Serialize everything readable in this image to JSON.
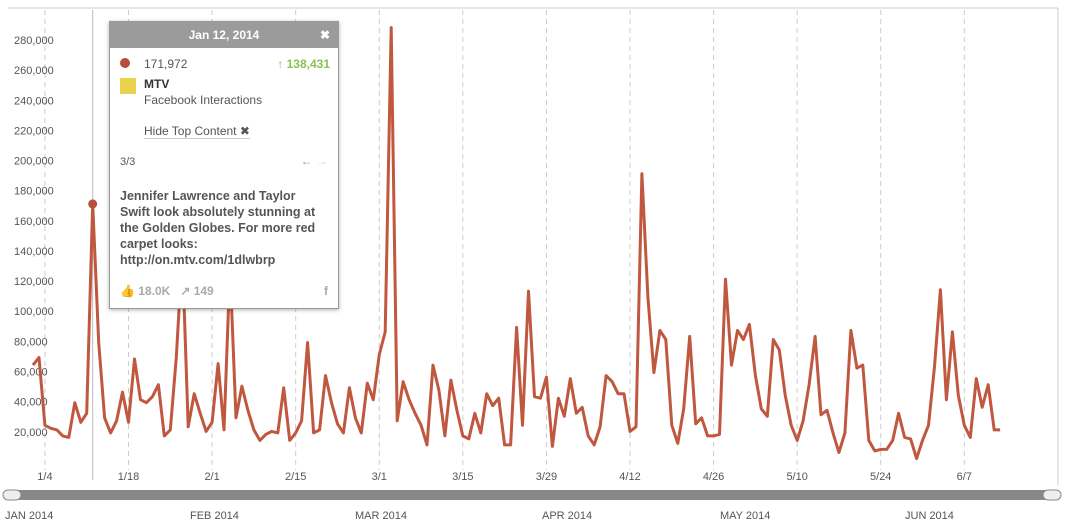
{
  "chart_data": {
    "type": "line",
    "categories": [
      null,
      null,
      "1/4",
      null,
      null,
      null,
      null,
      null,
      null,
      null,
      null,
      null,
      null,
      null,
      null,
      null,
      "1/18",
      null,
      null,
      null,
      null,
      null,
      null,
      null,
      null,
      null,
      null,
      null,
      null,
      null,
      "2/1",
      null,
      null,
      null,
      null,
      null,
      null,
      null,
      null,
      null,
      null,
      null,
      null,
      null,
      "2/15",
      null,
      null,
      null,
      null,
      null,
      null,
      null,
      null,
      null,
      null,
      null,
      null,
      null,
      "3/1",
      null,
      null,
      null,
      null,
      null,
      null,
      null,
      null,
      null,
      null,
      null,
      null,
      null,
      "3/15",
      null,
      null,
      null,
      null,
      null,
      null,
      null,
      null,
      null,
      null,
      null,
      null,
      null,
      "3/29",
      null,
      null,
      null,
      null,
      null,
      null,
      null,
      null,
      null,
      null,
      null,
      null,
      null,
      "4/12",
      null,
      null,
      null,
      null,
      null,
      null,
      null,
      null,
      null,
      null,
      null,
      null,
      null,
      "4/26",
      null,
      null,
      null,
      null,
      null,
      null,
      null,
      null,
      null,
      null,
      null,
      null,
      null,
      "5/10",
      null,
      null,
      null,
      null,
      null,
      null,
      null,
      null,
      null,
      null,
      null,
      null,
      null,
      "5/24",
      null,
      null,
      null,
      null,
      null,
      null,
      null,
      null,
      null,
      null,
      null,
      null,
      null,
      "6/7",
      null,
      null,
      null,
      null,
      null,
      null
    ],
    "values": [
      65000,
      70000,
      25000,
      23000,
      22000,
      18000,
      17000,
      40000,
      27000,
      33000,
      171972,
      80000,
      30000,
      20000,
      28000,
      47000,
      27000,
      69000,
      42000,
      40000,
      44000,
      52000,
      18000,
      22000,
      70000,
      140000,
      24000,
      46000,
      33000,
      21000,
      27000,
      66000,
      22000,
      130000,
      30000,
      51000,
      35000,
      22000,
      15000,
      19000,
      21000,
      20000,
      50000,
      15000,
      20000,
      28000,
      80000,
      20000,
      22000,
      58000,
      40000,
      26000,
      20000,
      50000,
      30000,
      20000,
      53000,
      42000,
      72000,
      87000,
      289000,
      28000,
      54000,
      42000,
      33000,
      25000,
      12000,
      65000,
      48000,
      18000,
      55000,
      35000,
      18000,
      16000,
      33000,
      20000,
      46000,
      38000,
      43000,
      12000,
      12000,
      90000,
      25000,
      114000,
      44000,
      43000,
      57000,
      11000,
      43000,
      31000,
      56000,
      33000,
      37000,
      18000,
      12000,
      24000,
      58000,
      54000,
      46000,
      46000,
      21000,
      24000,
      192000,
      110000,
      60000,
      88000,
      82000,
      25000,
      13000,
      36000,
      84000,
      26000,
      30000,
      18000,
      18000,
      19000,
      122000,
      65000,
      88000,
      82000,
      92000,
      58000,
      36000,
      31000,
      82000,
      75000,
      45000,
      25000,
      15000,
      28000,
      52000,
      84000,
      32000,
      35000,
      20000,
      7000,
      20000,
      88000,
      63000,
      65000,
      15000,
      8000,
      9000,
      9000,
      15000,
      33000,
      17000,
      16000,
      3000,
      15000,
      25000,
      64000,
      115000,
      42000,
      87000,
      45000,
      25000,
      17000,
      56000,
      37000,
      52000,
      22000,
      22000
    ],
    "color": "#c0573f",
    "ylim": [
      0,
      300000
    ],
    "yticks": [
      {
        "value": 20000,
        "label": "20,000"
      },
      {
        "value": 40000,
        "label": "40,000"
      },
      {
        "value": 60000,
        "label": "60,000"
      },
      {
        "value": 80000,
        "label": "80,000"
      },
      {
        "value": 100000,
        "label": "100,000"
      },
      {
        "value": 120000,
        "label": "120,000"
      },
      {
        "value": 140000,
        "label": "140,000"
      },
      {
        "value": 160000,
        "label": "160,000"
      },
      {
        "value": 180000,
        "label": "180,000"
      },
      {
        "value": 200000,
        "label": "200,000"
      },
      {
        "value": 220000,
        "label": "220,000"
      },
      {
        "value": 240000,
        "label": "240,000"
      },
      {
        "value": 260000,
        "label": "260,000"
      },
      {
        "value": 280000,
        "label": "280,000"
      }
    ],
    "highlight": 10
  },
  "tooltip": {
    "date": "Jan 12, 2014",
    "value": "171,972",
    "change": "138,431",
    "account": "MTV",
    "metric": "Facebook Interactions",
    "toggle": "Hide Top Content",
    "pager": "3/3",
    "post": "Jennifer Lawrence and Taylor Swift look absolutely stunning at the Golden Globes. For more red carpet looks: http://on.mtv.com/1dlwbrp",
    "likes": "18.0K",
    "shares": "149"
  },
  "navigator": {
    "months": [
      "JAN 2014",
      "FEB 2014",
      "MAR 2014",
      "APR 2014",
      "MAY 2014",
      "JUN 2014"
    ]
  }
}
